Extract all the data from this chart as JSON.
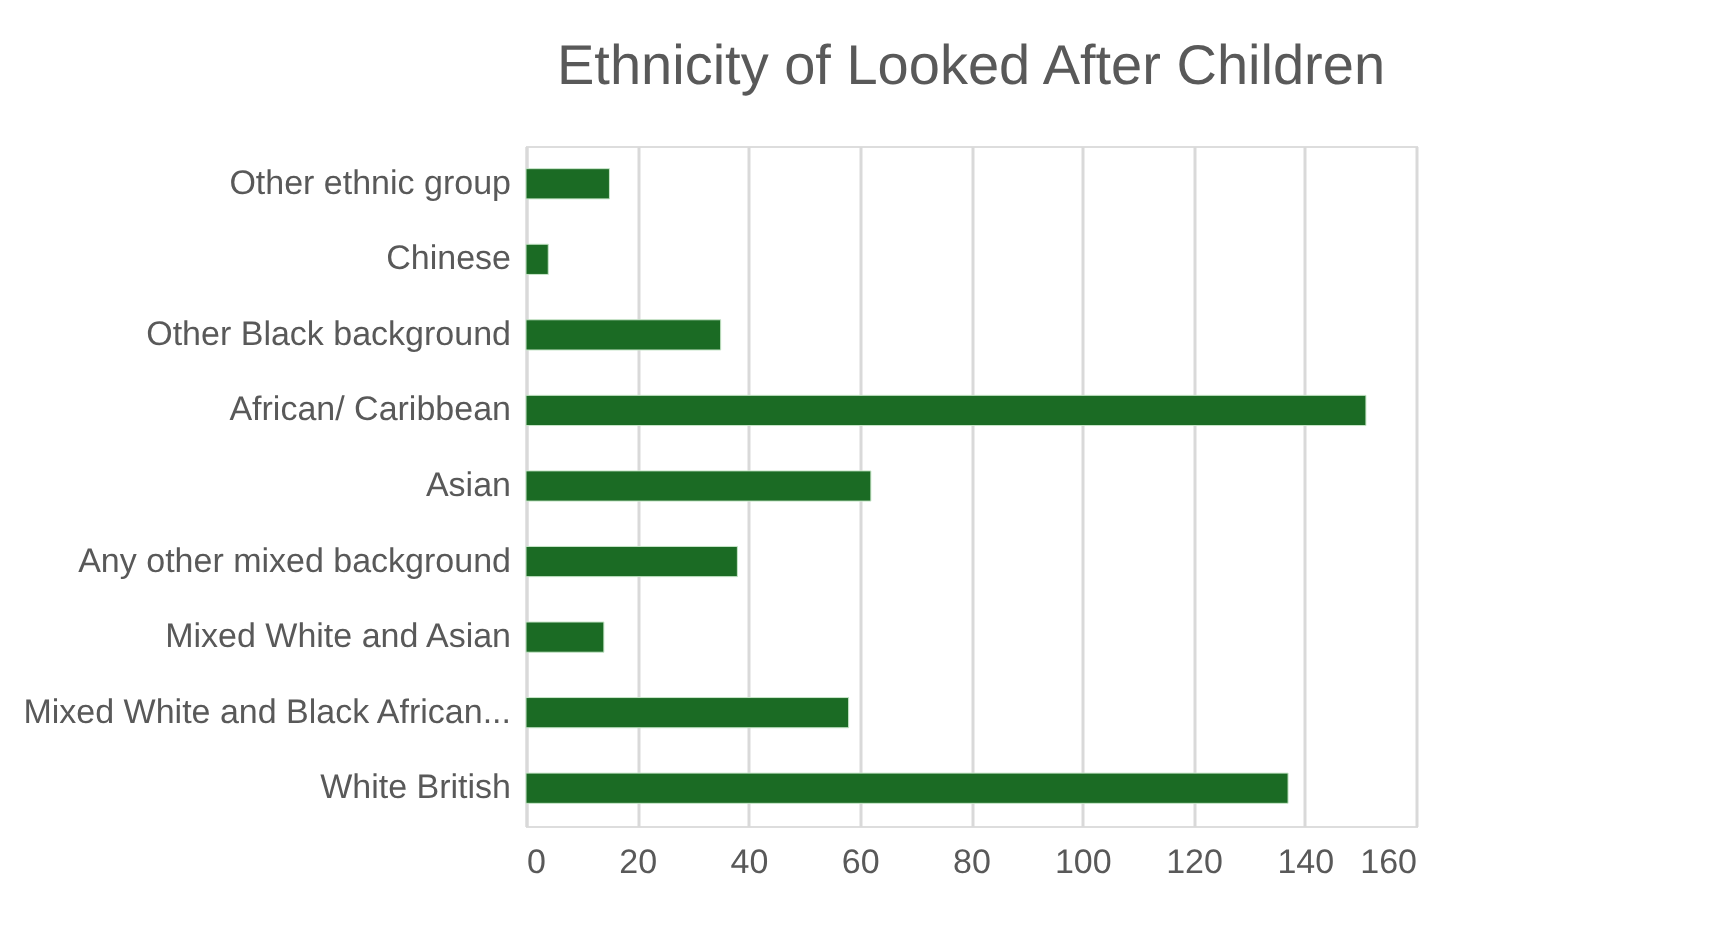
{
  "chart_data": {
    "type": "bar",
    "orientation": "horizontal",
    "title": "Ethnicity of Looked After Children",
    "categories": [
      "Other ethnic group",
      "Chinese",
      "Other Black background",
      "African/ Caribbean",
      "Asian",
      "Any other mixed background",
      "Mixed White and Asian",
      "Mixed White and Black African...",
      "White British"
    ],
    "values": [
      15,
      4,
      35,
      151,
      62,
      38,
      14,
      58,
      137
    ],
    "color": "#1b6b24",
    "xlim": [
      0,
      160
    ],
    "xticks": [
      0,
      20,
      40,
      60,
      80,
      100,
      120,
      140,
      160
    ],
    "grid": "x"
  }
}
